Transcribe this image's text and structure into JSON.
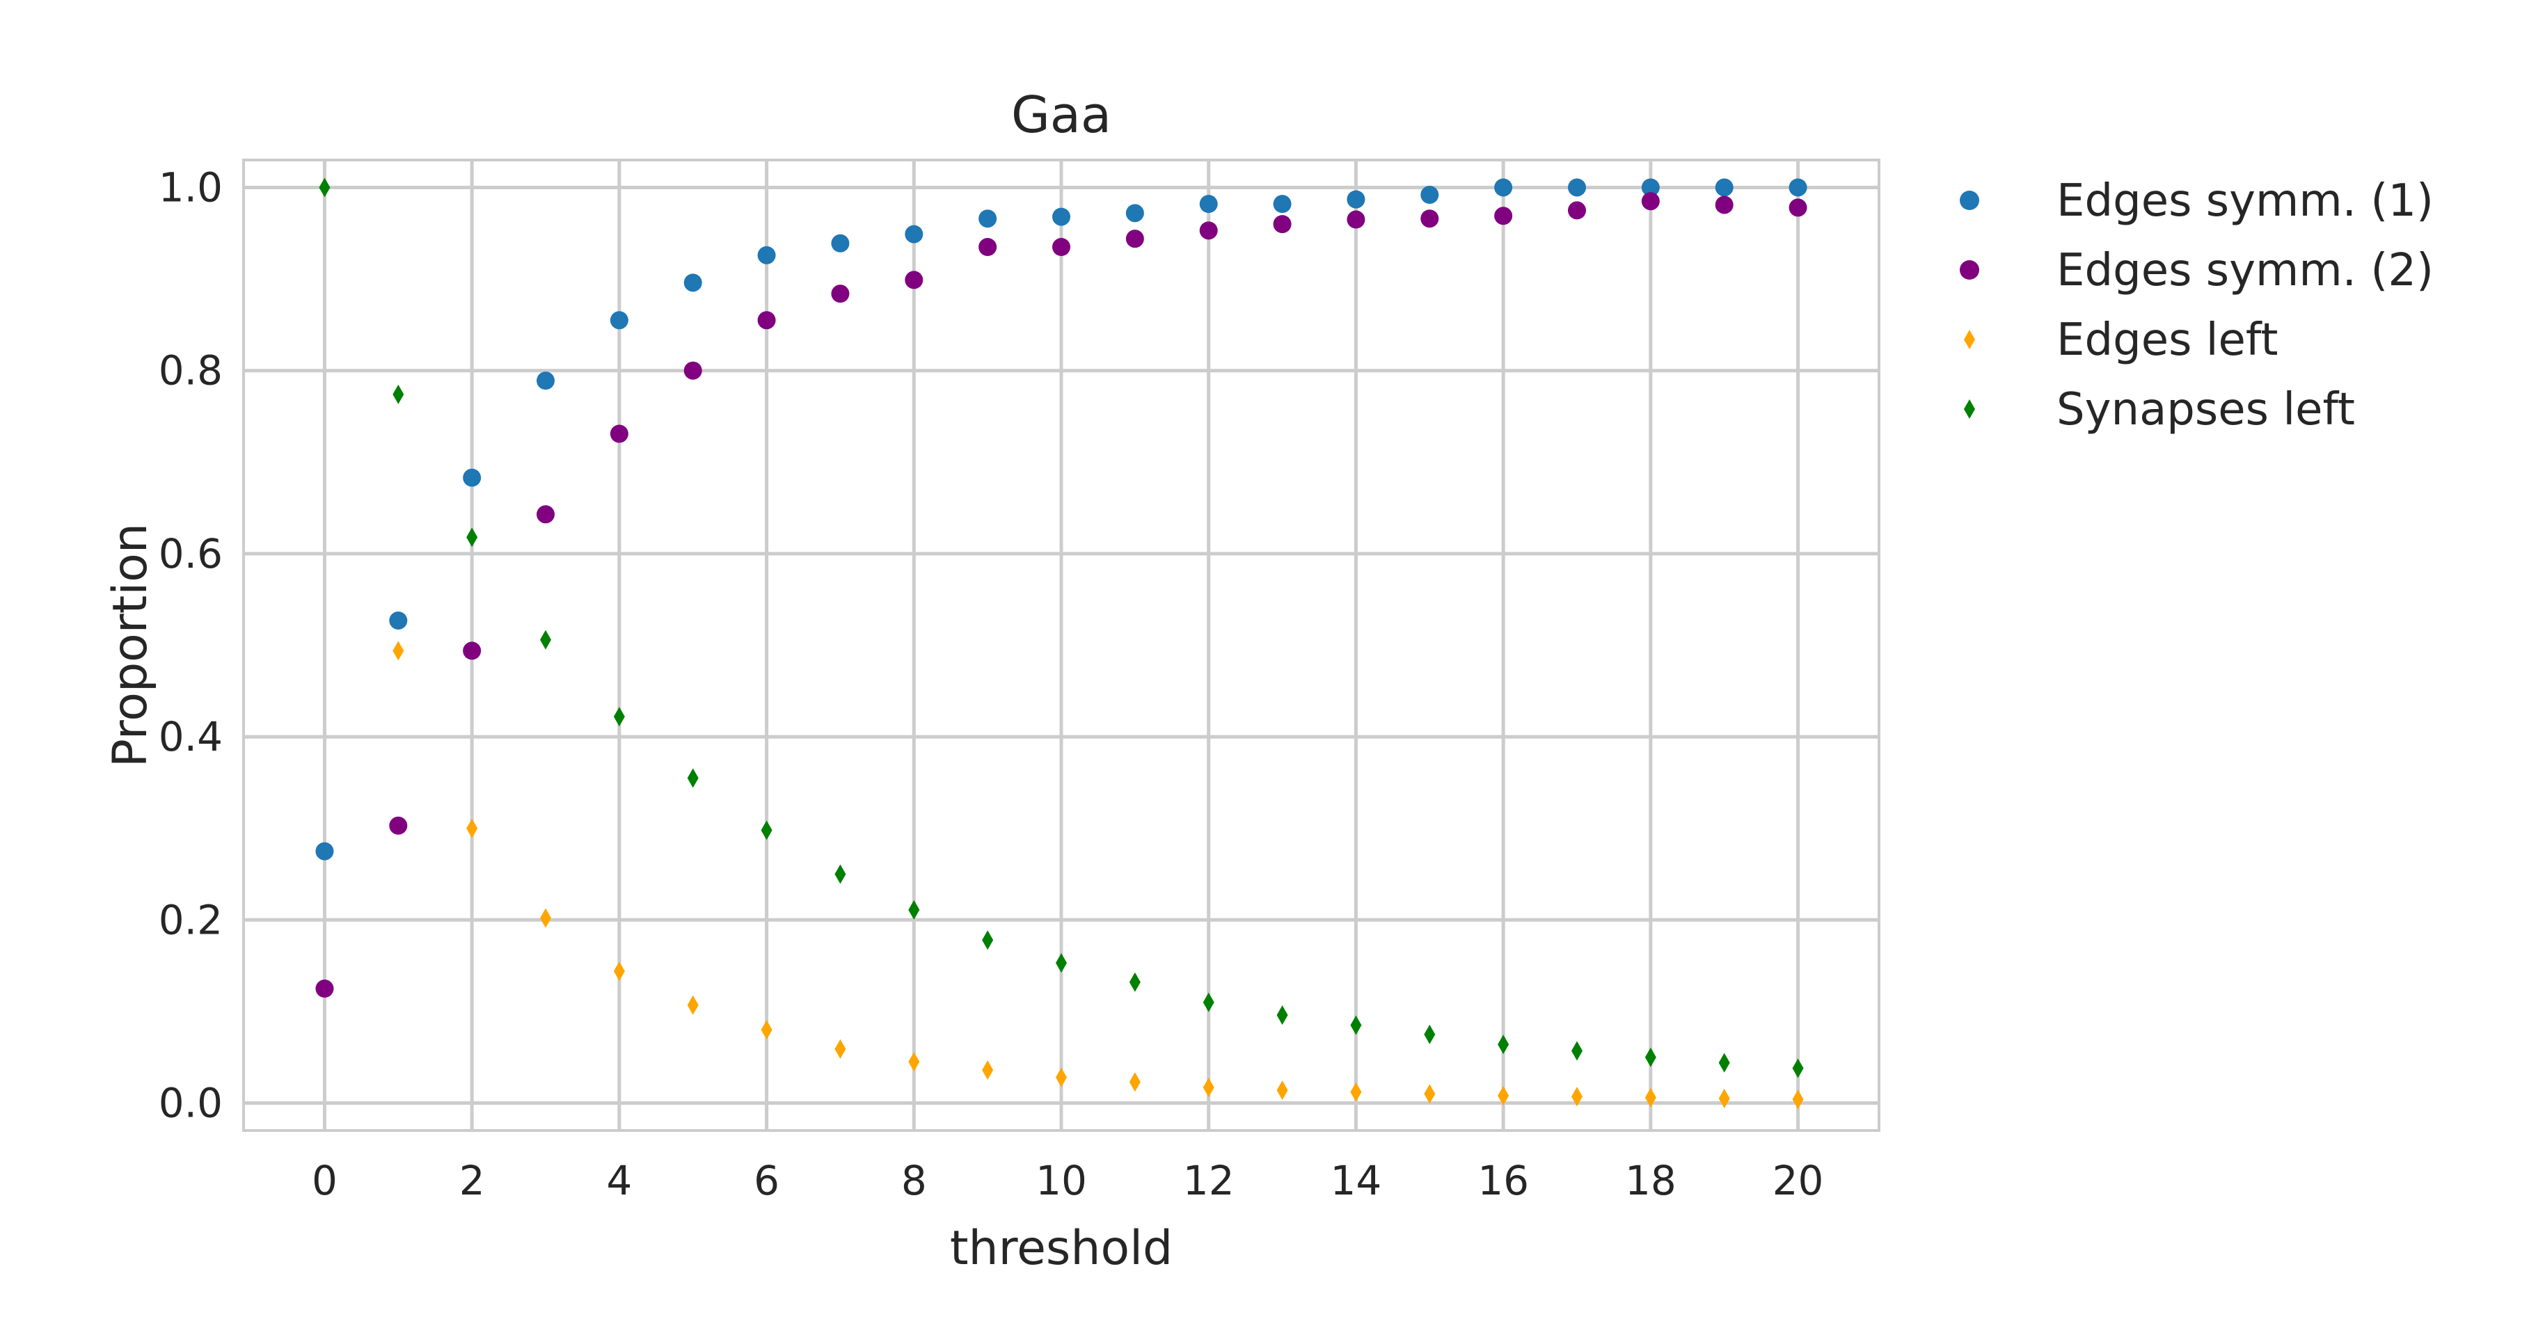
{
  "chart_data": {
    "type": "scatter",
    "title": "Gaa",
    "xlabel": "threshold",
    "ylabel": "Proportion",
    "xlim": [
      -1.1,
      21.1
    ],
    "ylim": [
      -0.03,
      1.03
    ],
    "xticks": [
      0,
      2,
      4,
      6,
      8,
      10,
      12,
      14,
      16,
      18,
      20
    ],
    "xtick_labels": [
      "0",
      "2",
      "4",
      "6",
      "8",
      "10",
      "12",
      "14",
      "16",
      "18",
      "20"
    ],
    "yticks": [
      0.0,
      0.2,
      0.4,
      0.6,
      0.8,
      1.0
    ],
    "ytick_labels": [
      "0.0",
      "0.2",
      "0.4",
      "0.6",
      "0.8",
      "1.0"
    ],
    "grid": true,
    "legend_position": "outside-right-top",
    "x": [
      0,
      1,
      2,
      3,
      4,
      5,
      6,
      7,
      8,
      9,
      10,
      11,
      12,
      13,
      14,
      15,
      16,
      17,
      18,
      19,
      20
    ],
    "series": [
      {
        "name": "Edges symm. (1)",
        "marker": "circle",
        "color": "#1f77b4",
        "values": [
          0.275,
          0.527,
          0.683,
          0.789,
          0.855,
          0.896,
          0.926,
          0.939,
          0.949,
          0.966,
          0.968,
          0.972,
          0.982,
          0.982,
          0.987,
          0.992,
          1.0,
          1.0,
          1.0,
          1.0,
          1.0
        ]
      },
      {
        "name": "Edges symm. (2)",
        "marker": "circle",
        "color": "#800080",
        "values": [
          0.125,
          0.303,
          0.494,
          0.643,
          0.731,
          0.8,
          0.855,
          0.884,
          0.899,
          0.935,
          0.935,
          0.944,
          0.953,
          0.96,
          0.965,
          0.966,
          0.969,
          0.975,
          0.985,
          0.981,
          0.978
        ]
      },
      {
        "name": "Edges left",
        "marker": "thin-diamond",
        "color": "#ffa500",
        "values": [
          null,
          0.494,
          0.3,
          0.202,
          0.144,
          0.107,
          0.08,
          0.059,
          0.045,
          0.036,
          0.028,
          0.023,
          0.017,
          0.014,
          0.012,
          0.01,
          0.008,
          0.007,
          0.006,
          0.005,
          0.004
        ]
      },
      {
        "name": "Synapses left",
        "marker": "thin-diamond",
        "color": "#008000",
        "values": [
          1.0,
          0.774,
          0.618,
          0.506,
          0.422,
          0.355,
          0.298,
          0.25,
          0.211,
          0.178,
          0.153,
          0.132,
          0.11,
          0.096,
          0.085,
          0.075,
          0.064,
          0.057,
          0.05,
          0.044,
          0.038
        ]
      }
    ]
  }
}
